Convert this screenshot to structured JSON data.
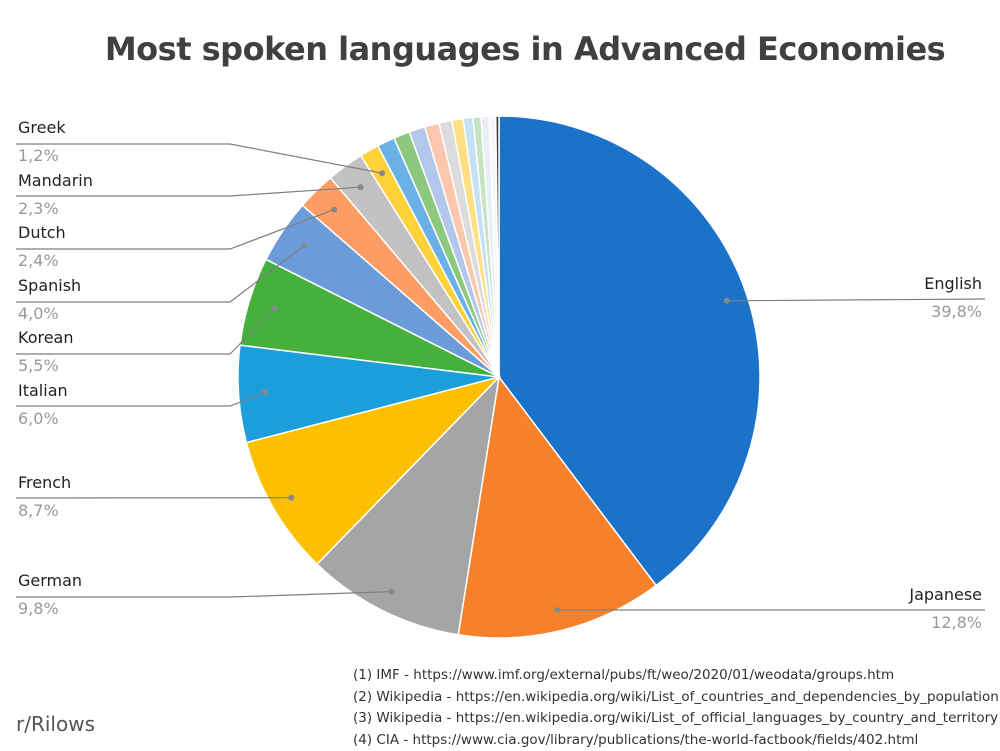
{
  "chart_data": {
    "type": "pie",
    "title": "Most spoken languages in Advanced Economies",
    "slices": [
      {
        "label": "English",
        "value": 39.8,
        "value_text": "39,8%",
        "color": "#1a72c9"
      },
      {
        "label": "Japanese",
        "value": 12.8,
        "value_text": "12,8%",
        "color": "#f7802a"
      },
      {
        "label": "German",
        "value": 9.8,
        "value_text": "9,8%",
        "color": "#a5a5a5"
      },
      {
        "label": "French",
        "value": 8.7,
        "value_text": "8,7%",
        "color": "#fdc000"
      },
      {
        "label": "Italian",
        "value": 6.0,
        "value_text": "6,0%",
        "color": "#1c9edb"
      },
      {
        "label": "Korean",
        "value": 5.5,
        "value_text": "5,5%",
        "color": "#45b03c"
      },
      {
        "label": "Spanish",
        "value": 4.0,
        "value_text": "4,0%",
        "color": "#6b9bd9"
      },
      {
        "label": "Dutch",
        "value": 2.4,
        "value_text": "2,4%",
        "color": "#fd9d64"
      },
      {
        "label": "Mandarin",
        "value": 2.3,
        "value_text": "2,3%",
        "color": "#c2c2c2"
      },
      {
        "label": "Greek",
        "value": 1.2,
        "value_text": "1,2%",
        "color": "#ffd13b"
      },
      {
        "label": "",
        "value": 1.1,
        "color": "#6ab1e8"
      },
      {
        "label": "",
        "value": 1.0,
        "color": "#8cc97f"
      },
      {
        "label": "",
        "value": 1.0,
        "color": "#b3c7ea"
      },
      {
        "label": "",
        "value": 0.9,
        "color": "#fdc7ae"
      },
      {
        "label": "",
        "value": 0.8,
        "color": "#dcdcdc"
      },
      {
        "label": "",
        "value": 0.7,
        "color": "#ffe085"
      },
      {
        "label": "",
        "value": 0.6,
        "color": "#c4e1f6"
      },
      {
        "label": "",
        "value": 0.5,
        "color": "#c7e3c2"
      },
      {
        "label": "",
        "value": 0.5,
        "color": "#e8eef8"
      },
      {
        "label": "",
        "value": 0.4,
        "color": "#f7f7f7"
      },
      {
        "label": "",
        "value": 0.2,
        "color": "#3a3a3a"
      }
    ]
  },
  "sources": [
    "(1) IMF - https://www.imf.org/external/pubs/ft/weo/2020/01/weodata/groups.htm",
    "(2) Wikipedia - https://en.wikipedia.org/wiki/List_of_countries_and_dependencies_by_population",
    "(3) Wikipedia - https://en.wikipedia.org/wiki/List_of_official_languages_by_country_and_territory",
    "(4) CIA - https://www.cia.gov/library/publications/the-world-factbook/fields/402.html"
  ],
  "credit": "r/Rilows"
}
